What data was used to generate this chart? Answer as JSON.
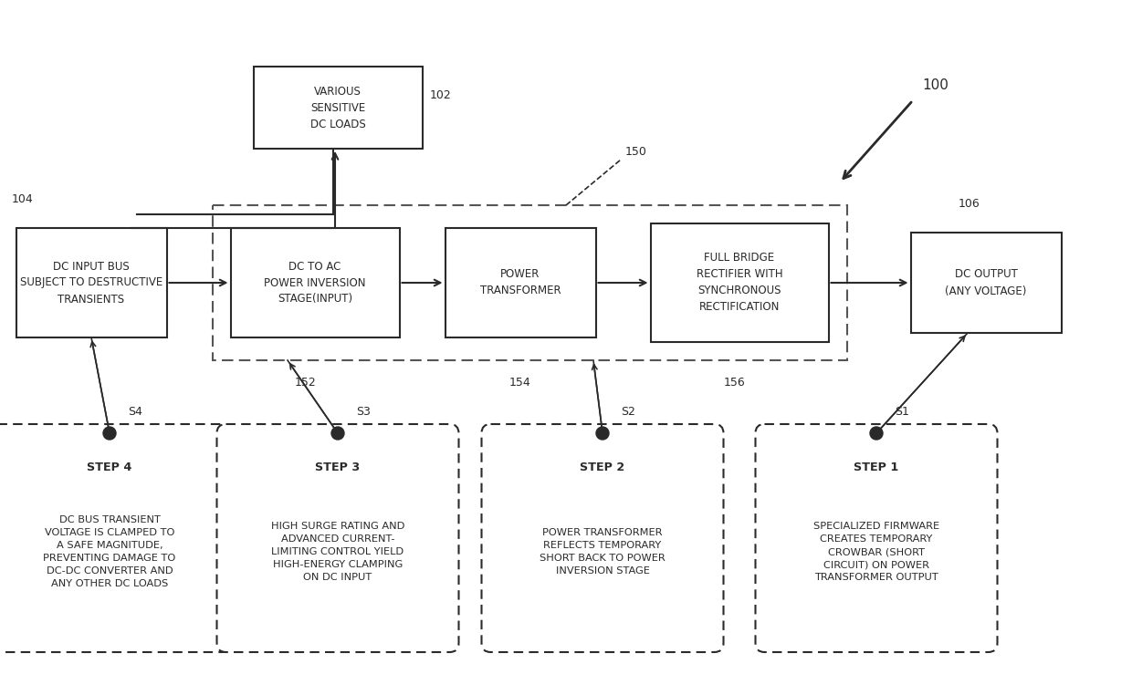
{
  "bg_color": "#ffffff",
  "title_label": "100",
  "diagram_ref": "150",
  "ref_104": "104",
  "ref_102": "102",
  "ref_106": "106",
  "ref_152": "152",
  "ref_154": "154",
  "ref_156": "156",
  "box_dc_input": "DC INPUT BUS\nSUBJECT TO DESTRUCTIVE\nTRANSIENTS",
  "box_dc_ac": "DC TO AC\nPOWER INVERSION\nSTAGE(INPUT)",
  "box_power_xfmr": "POWER\nTRANSFORMER",
  "box_full_bridge": "FULL BRIDGE\nRECTIFIER WITH\nSYNCHRONOUS\nRECTIFICATION",
  "box_dc_output": "DC OUTPUT\n(ANY VOLTAGE)",
  "box_sensitive": "VARIOUS\nSENSITIVE\nDC LOADS",
  "step4_title": "STEP 4",
  "step4_body": "DC BUS TRANSIENT\nVOLTAGE IS CLAMPED TO\nA SAFE MAGNITUDE,\nPREVENTING DAMAGE TO\nDC-DC CONVERTER AND\nANY OTHER DC LOADS",
  "step3_title": "STEP 3",
  "step3_body": "HIGH SURGE RATING AND\nADVANCED CURRENT-\nLIMITING CONTROL YIELD\nHIGH-ENERGY CLAMPING\nON DC INPUT",
  "step2_title": "STEP 2",
  "step2_body": "POWER TRANSFORMER\nREFLECTS TEMPORARY\nSHORT BACK TO POWER\nINVERSION STAGE",
  "step1_title": "STEP 1",
  "step1_body": "SPECIALIZED FIRMWARE\nCREATES TEMPORARY\nCROWBAR (SHORT\nCIRCUIT) ON POWER\nTRANSFORMER OUTPUT",
  "step_labels": [
    "S4",
    "S3",
    "S2",
    "S1"
  ],
  "line_color": "#2a2a2a",
  "box_color": "#ffffff"
}
